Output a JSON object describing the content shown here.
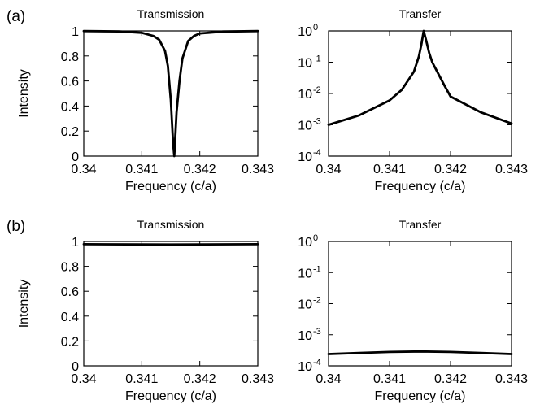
{
  "chart_data": [
    {
      "panel": "(a)",
      "type": "line",
      "title": "Transmission",
      "xlabel": "Frequency (c/a)",
      "ylabel": "Intensity",
      "xlim": [
        0.34,
        0.343
      ],
      "ylim": [
        0,
        1
      ],
      "yscale": "linear",
      "x_ticks": [
        "0.34",
        "0.341",
        "0.342",
        "0.343"
      ],
      "y_ticks": [
        "0",
        "0.2",
        "0.4",
        "0.6",
        "0.8",
        "1"
      ],
      "series": [
        {
          "x": [
            0.34,
            0.3406,
            0.341,
            0.3412,
            0.3413,
            0.3414,
            0.34145,
            0.3415,
            0.34152,
            0.34154,
            0.34156,
            0.3416,
            0.34165,
            0.3417,
            0.3418,
            0.3419,
            0.342,
            0.3424,
            0.343
          ],
          "y": [
            0.999,
            0.996,
            0.985,
            0.96,
            0.93,
            0.84,
            0.72,
            0.45,
            0.28,
            0.1,
            0.0,
            0.35,
            0.6,
            0.78,
            0.92,
            0.96,
            0.98,
            0.995,
            0.999
          ]
        }
      ]
    },
    {
      "panel": "(a)",
      "type": "line",
      "title": "Transfer",
      "xlabel": "Frequency (c/a)",
      "ylabel": "",
      "xlim": [
        0.34,
        0.343
      ],
      "ylim": [
        0.0001,
        1
      ],
      "yscale": "log",
      "x_ticks": [
        "0.34",
        "0.341",
        "0.342",
        "0.343"
      ],
      "y_ticks": [
        {
          "base": "10",
          "exp": "-4"
        },
        {
          "base": "10",
          "exp": "-3"
        },
        {
          "base": "10",
          "exp": "-2"
        },
        {
          "base": "10",
          "exp": "-1"
        },
        {
          "base": "10",
          "exp": "0"
        }
      ],
      "series": [
        {
          "x": [
            0.34,
            0.3405,
            0.341,
            0.3412,
            0.3414,
            0.34148,
            0.34152,
            0.34156,
            0.3416,
            0.34165,
            0.3417,
            0.3419,
            0.342,
            0.3425,
            0.343
          ],
          "y": [
            0.001,
            0.002,
            0.006,
            0.013,
            0.05,
            0.15,
            0.35,
            1.0,
            0.5,
            0.2,
            0.1,
            0.018,
            0.008,
            0.0025,
            0.0011
          ]
        }
      ]
    },
    {
      "panel": "(b)",
      "type": "line",
      "title": "Transmission",
      "xlabel": "Frequency (c/a)",
      "ylabel": "Intensity",
      "xlim": [
        0.34,
        0.343
      ],
      "ylim": [
        0,
        1
      ],
      "yscale": "linear",
      "x_ticks": [
        "0.34",
        "0.341",
        "0.342",
        "0.343"
      ],
      "y_ticks": [
        "0",
        "0.2",
        "0.4",
        "0.6",
        "0.8",
        "1"
      ],
      "series": [
        {
          "x": [
            0.34,
            0.3415,
            0.343
          ],
          "y": [
            0.978,
            0.975,
            0.978
          ]
        }
      ]
    },
    {
      "panel": "(b)",
      "type": "line",
      "title": "Transfer",
      "xlabel": "Frequency (c/a)",
      "ylabel": "",
      "xlim": [
        0.34,
        0.343
      ],
      "ylim": [
        0.0001,
        1
      ],
      "yscale": "log",
      "x_ticks": [
        "0.34",
        "0.341",
        "0.342",
        "0.343"
      ],
      "y_ticks": [
        {
          "base": "10",
          "exp": "-4"
        },
        {
          "base": "10",
          "exp": "-3"
        },
        {
          "base": "10",
          "exp": "-2"
        },
        {
          "base": "10",
          "exp": "-1"
        },
        {
          "base": "10",
          "exp": "0"
        }
      ],
      "series": [
        {
          "x": [
            0.34,
            0.3405,
            0.341,
            0.3415,
            0.342,
            0.3425,
            0.343
          ],
          "y": [
            0.00024,
            0.00026,
            0.00028,
            0.00029,
            0.00028,
            0.00026,
            0.00024
          ]
        }
      ]
    }
  ]
}
